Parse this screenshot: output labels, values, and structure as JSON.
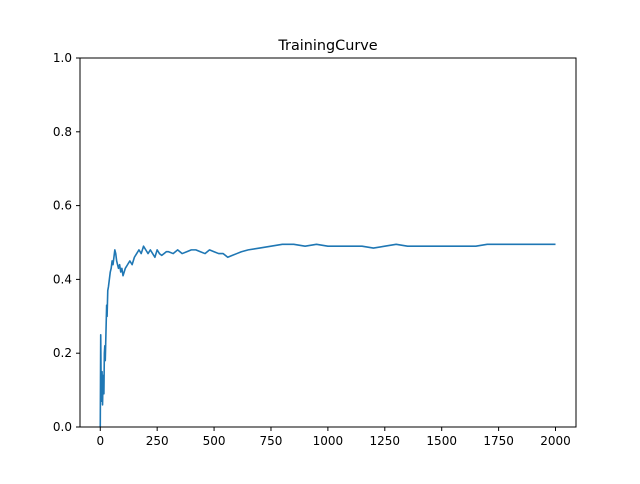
{
  "chart_data": {
    "type": "line",
    "title": "TrainingCurve",
    "xlabel": "",
    "ylabel": "",
    "xlim": [
      -89,
      2090
    ],
    "ylim": [
      0.0,
      1.0
    ],
    "x_ticks": [
      0,
      250,
      500,
      750,
      1000,
      1250,
      1500,
      1750,
      2000
    ],
    "x_tick_labels": [
      "0",
      "250",
      "500",
      "750",
      "1000",
      "1250",
      "1500",
      "1750",
      "2000"
    ],
    "y_ticks": [
      0.0,
      0.2,
      0.4,
      0.6,
      0.8,
      1.0
    ],
    "y_tick_labels": [
      "0.0",
      "0.2",
      "0.4",
      "0.6",
      "0.8",
      "1.0"
    ],
    "grid": false,
    "legend": "none",
    "series": [
      {
        "color": "#1f77b4",
        "x": [
          0,
          2,
          4,
          6,
          8,
          10,
          12,
          14,
          16,
          18,
          20,
          22,
          24,
          26,
          28,
          30,
          33,
          36,
          40,
          44,
          48,
          52,
          56,
          60,
          64,
          68,
          72,
          76,
          80,
          85,
          90,
          95,
          100,
          110,
          120,
          130,
          140,
          150,
          160,
          170,
          180,
          190,
          200,
          210,
          220,
          230,
          240,
          250,
          260,
          270,
          280,
          290,
          300,
          320,
          340,
          360,
          380,
          400,
          420,
          440,
          460,
          480,
          500,
          520,
          540,
          560,
          580,
          600,
          620,
          650,
          700,
          750,
          800,
          850,
          900,
          950,
          1000,
          1050,
          1100,
          1150,
          1200,
          1250,
          1300,
          1350,
          1400,
          1450,
          1500,
          1550,
          1600,
          1650,
          1700,
          1750,
          1800,
          1850,
          1900,
          1950,
          2000
        ],
        "y": [
          0.0,
          0.25,
          0.1,
          0.07,
          0.15,
          0.06,
          0.12,
          0.14,
          0.09,
          0.2,
          0.22,
          0.18,
          0.23,
          0.28,
          0.33,
          0.3,
          0.37,
          0.38,
          0.4,
          0.42,
          0.43,
          0.45,
          0.44,
          0.46,
          0.48,
          0.47,
          0.45,
          0.44,
          0.43,
          0.44,
          0.42,
          0.43,
          0.41,
          0.43,
          0.44,
          0.45,
          0.44,
          0.46,
          0.47,
          0.48,
          0.47,
          0.49,
          0.48,
          0.47,
          0.48,
          0.47,
          0.46,
          0.48,
          0.47,
          0.465,
          0.47,
          0.475,
          0.475,
          0.47,
          0.48,
          0.47,
          0.475,
          0.48,
          0.48,
          0.475,
          0.47,
          0.48,
          0.475,
          0.47,
          0.47,
          0.46,
          0.465,
          0.47,
          0.475,
          0.48,
          0.485,
          0.49,
          0.495,
          0.495,
          0.49,
          0.495,
          0.49,
          0.49,
          0.49,
          0.49,
          0.485,
          0.49,
          0.495,
          0.49,
          0.49,
          0.49,
          0.49,
          0.49,
          0.49,
          0.49,
          0.495,
          0.495,
          0.495,
          0.495,
          0.495,
          0.495,
          0.495
        ]
      }
    ]
  }
}
